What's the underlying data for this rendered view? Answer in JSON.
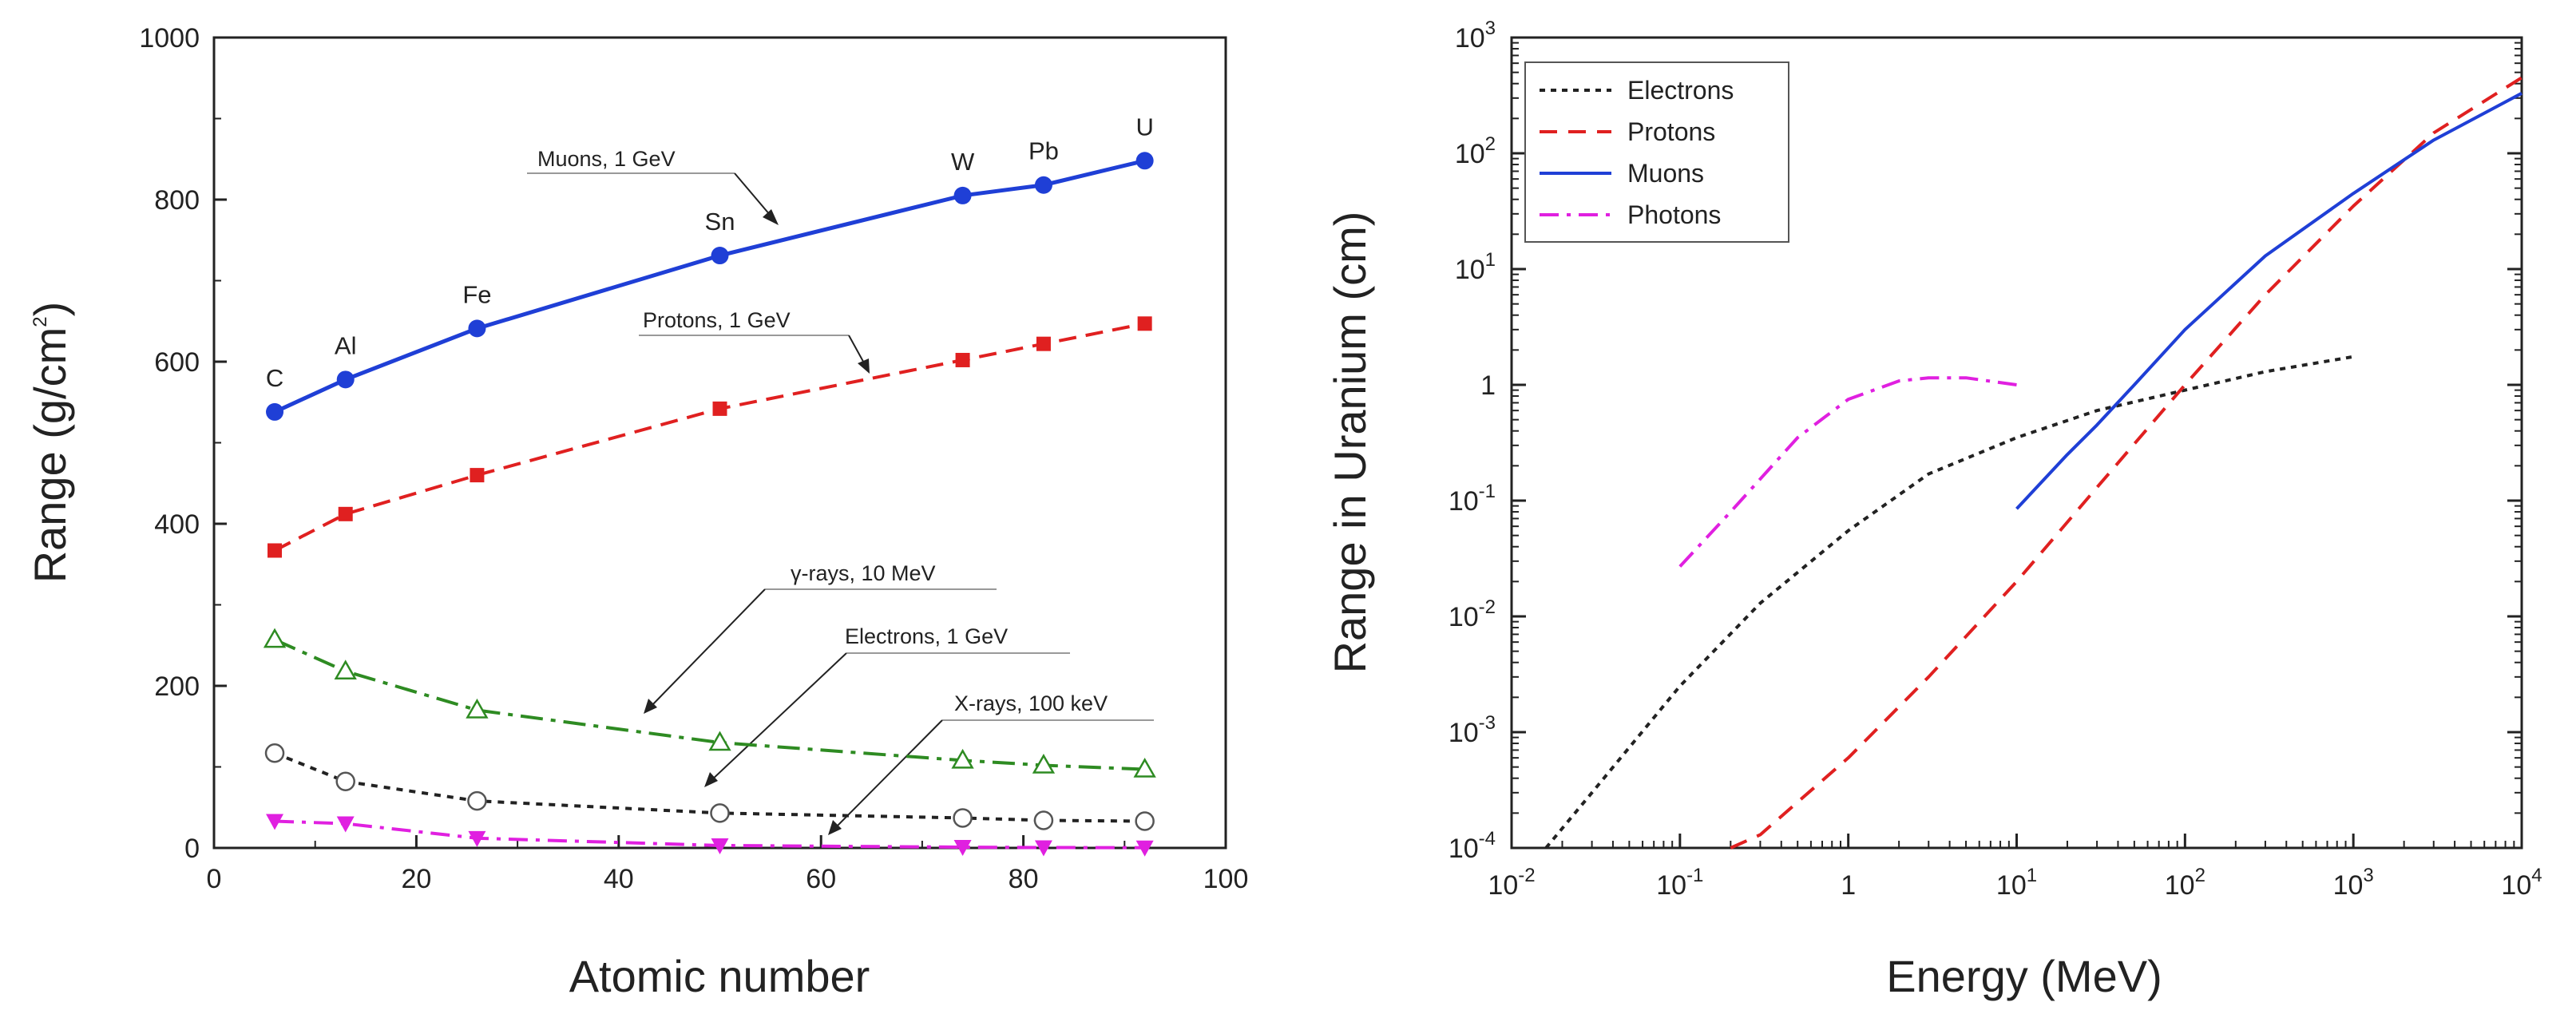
{
  "chart_data": [
    {
      "type": "line",
      "xlabel": "Atomic number",
      "ylabel": "Range (g/cm²)",
      "ylabel_base": "Range (g/cm",
      "ylabel_sup": "2",
      "ylabel_end": ")",
      "xlim": [
        0,
        100
      ],
      "ylim": [
        0,
        1000
      ],
      "xticks": [
        "0",
        "20",
        "40",
        "60",
        "80",
        "100"
      ],
      "yticks": [
        "0",
        "200",
        "400",
        "600",
        "800",
        "1000"
      ],
      "grid": false,
      "x": [
        6,
        13,
        26,
        50,
        74,
        82,
        92
      ],
      "element_labels": [
        "C",
        "Al",
        "Fe",
        "Sn",
        "W",
        "Pb",
        "U"
      ],
      "series": [
        {
          "name": "Muons, 1 GeV",
          "color": "#1f3fd6",
          "marker": "filled-circle",
          "values": [
            538,
            578,
            641,
            731,
            805,
            818,
            848
          ]
        },
        {
          "name": "Protons, 1 GeV",
          "color": "#e02020",
          "marker": "filled-square",
          "values": [
            367,
            412,
            460,
            542,
            602,
            622,
            647
          ]
        },
        {
          "name": "γ-rays, 10 MeV",
          "color": "#2e8b22",
          "marker": "open-triangle",
          "values": [
            257,
            218,
            170,
            130,
            108,
            102,
            97
          ]
        },
        {
          "name": "Electrons, 1 GeV",
          "color": "#222222",
          "marker": "open-circle",
          "values": [
            117,
            82,
            58,
            43,
            37,
            34,
            33
          ]
        },
        {
          "name": "X-rays, 100 keV",
          "color": "#e020e0",
          "marker": "filled-down-triangle",
          "values": [
            33,
            30,
            12,
            3,
            1,
            0.5,
            0.3
          ]
        }
      ]
    },
    {
      "type": "line",
      "scale": "log-log",
      "xlabel": "Energy (MeV)",
      "ylabel": "Range in Uranium (cm)",
      "xlim": [
        0.01,
        10000
      ],
      "ylim": [
        0.0001,
        1000
      ],
      "grid": false,
      "legend_position": "top-left",
      "xticks": [
        {
          "base": "10",
          "exp": "-2"
        },
        {
          "base": "10",
          "exp": "-1"
        },
        {
          "base": "1",
          "exp": ""
        },
        {
          "base": "10",
          "exp": "1"
        },
        {
          "base": "10",
          "exp": "2"
        },
        {
          "base": "10",
          "exp": "3"
        },
        {
          "base": "10",
          "exp": "4"
        }
      ],
      "yticks": [
        {
          "base": "10",
          "exp": "-4"
        },
        {
          "base": "10",
          "exp": "-3"
        },
        {
          "base": "10",
          "exp": "-2"
        },
        {
          "base": "10",
          "exp": "-1"
        },
        {
          "base": "1",
          "exp": ""
        },
        {
          "base": "10",
          "exp": "1"
        },
        {
          "base": "10",
          "exp": "2"
        },
        {
          "base": "10",
          "exp": "3"
        }
      ],
      "series": [
        {
          "name": "Electrons",
          "color": "#222222",
          "dash": "dotted",
          "x": [
            0.016,
            0.03,
            0.1,
            0.3,
            1,
            3,
            10,
            30,
            100,
            300,
            1000
          ],
          "y": [
            0.0001,
            0.0003,
            0.0025,
            0.013,
            0.055,
            0.17,
            0.35,
            0.6,
            0.9,
            1.3,
            1.75
          ]
        },
        {
          "name": "Protons",
          "color": "#e02020",
          "dash": "dashed",
          "x": [
            0.2,
            0.3,
            1,
            3,
            10,
            30,
            100,
            300,
            1000,
            3000,
            10000
          ],
          "y": [
            0.0001,
            0.00013,
            0.0006,
            0.003,
            0.02,
            0.13,
            1.0,
            6,
            35,
            150,
            450
          ]
        },
        {
          "name": "Muons",
          "color": "#1f3fd6",
          "dash": "solid",
          "x": [
            10,
            20,
            30,
            50,
            100,
            300,
            1000,
            3000,
            10000
          ],
          "y": [
            0.085,
            0.25,
            0.45,
            1.0,
            3.0,
            13,
            45,
            130,
            330
          ]
        },
        {
          "name": "Photons",
          "color": "#e020e0",
          "dash": "dashdot",
          "x": [
            0.1,
            0.2,
            0.5,
            1,
            2,
            3,
            5,
            10
          ],
          "y": [
            0.027,
            0.08,
            0.35,
            0.75,
            1.08,
            1.15,
            1.15,
            1.0
          ]
        }
      ]
    }
  ]
}
